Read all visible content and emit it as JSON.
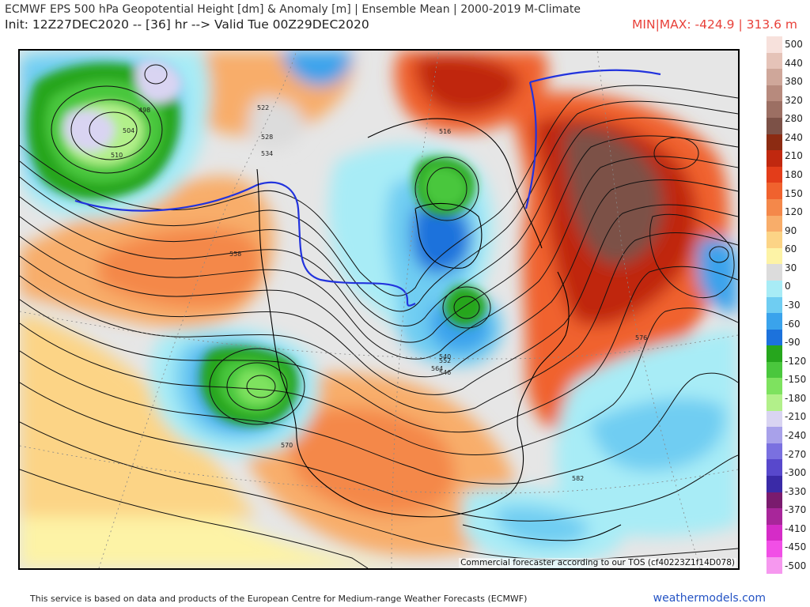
{
  "header": {
    "title": "ECMWF EPS 500 hPa Geopotential Height [dm] & Anomaly [m] | Ensemble Mean | 2000-2019 M-Climate",
    "init_line": "Init: 12Z27DEC2020 -- [36] hr --> Valid Tue 00Z29DEC2020",
    "minmax": "MIN|MAX: -424.9 | 313.6 m"
  },
  "map": {
    "credit": "Commercial forecaster according to our TOS (cf40223Z1f14D078)",
    "height_contour_labels": [
      "498",
      "504",
      "510",
      "516",
      "522",
      "528",
      "534",
      "540",
      "546",
      "552",
      "558",
      "564",
      "570",
      "576",
      "582"
    ],
    "colors": {
      "ocean_gray": "#e6e6e6",
      "zero_contour": "#2233dd"
    }
  },
  "colorbar": {
    "labels": [
      "500",
      "440",
      "380",
      "320",
      "280",
      "240",
      "210",
      "180",
      "150",
      "120",
      "90",
      "60",
      "30",
      "0",
      "-30",
      "-60",
      "-90",
      "-120",
      "-150",
      "-180",
      "-210",
      "-240",
      "-270",
      "-300",
      "-330",
      "-370",
      "-410",
      "-450",
      "-500"
    ],
    "colors": [
      "#f7e1dc",
      "#e5c3b8",
      "#cfa79a",
      "#b78a7d",
      "#9c6f63",
      "#7c5147",
      "#8c2b12",
      "#c0280f",
      "#e33d1a",
      "#f0622e",
      "#f4884a",
      "#f8ad6a",
      "#fcd486",
      "#fdf3a6",
      "#dcdcdc",
      "#a8ecf6",
      "#6fcdf2",
      "#3aa3ec",
      "#1c72dc",
      "#26a61d",
      "#4ac73d",
      "#7ee25f",
      "#b2f08a",
      "#d9d4f2",
      "#a8a1ea",
      "#7a70e0",
      "#5848cc",
      "#3a2aa7",
      "#7a1b6e",
      "#a8269a",
      "#d52cc7",
      "#f14fe6",
      "#f698ef"
    ]
  },
  "footer": {
    "attribution": "This service is based on data and products of the European Centre for Medium-range Weather Forecasts (ECMWF)",
    "brand": "weathermodels.com"
  }
}
